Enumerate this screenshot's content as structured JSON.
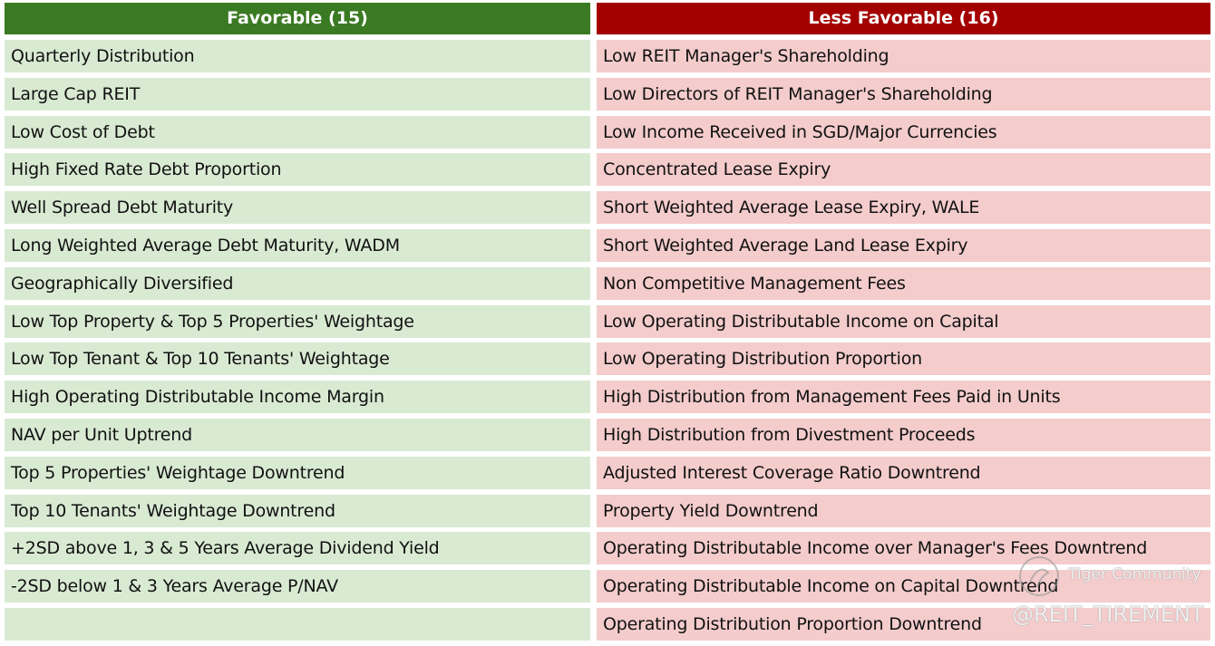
{
  "favorable": {
    "header": "Favorable (15)",
    "items": [
      "Quarterly Distribution",
      "Large Cap REIT",
      "Low Cost of Debt",
      "High Fixed Rate Debt Proportion",
      "Well Spread Debt Maturity",
      "Long Weighted Average Debt Maturity, WADM",
      "Geographically Diversified",
      "Low Top Property & Top 5 Properties' Weightage",
      "Low Top Tenant & Top 10 Tenants' Weightage",
      "High Operating Distributable Income Margin",
      "NAV per Unit Uptrend",
      "Top 5 Properties' Weightage Downtrend",
      "Top 10 Tenants' Weightage Downtrend",
      "+2SD above 1, 3 & 5 Years Average Dividend Yield",
      "-2SD below 1 & 3 Years Average P/NAV"
    ]
  },
  "less_favorable": {
    "header": "Less Favorable (16)",
    "items": [
      "Low REIT Manager's Shareholding",
      "Low Directors of REIT Manager's Shareholding",
      "Low Income Received in SGD/Major Currencies",
      "Concentrated Lease Expiry",
      "Short Weighted Average Lease Expiry, WALE",
      "Short Weighted Average Land Lease Expiry",
      "Non Competitive Management Fees",
      "Low Operating Distributable Income on Capital",
      "Low Operating Distribution Proportion",
      "High Distribution from Management Fees Paid in Units",
      "High Distribution from Divestment Proceeds",
      "Adjusted Interest Coverage Ratio Downtrend",
      "Property Yield Downtrend",
      "Operating Distributable Income over Manager's Fees Downtrend",
      "Operating Distributable Income on Capital Downtrend",
      "Operating Distribution Proportion Downtrend"
    ]
  },
  "watermark": {
    "brand": "Tiger Community",
    "handle": "@REIT_TIREMENT"
  }
}
